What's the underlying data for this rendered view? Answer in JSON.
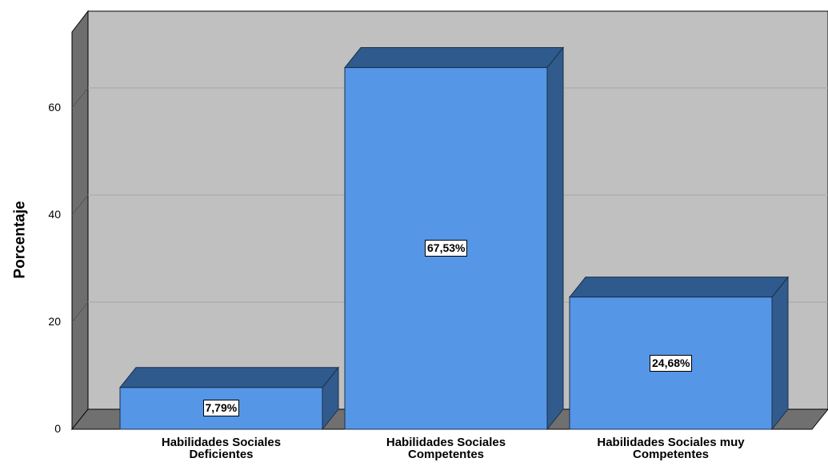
{
  "chart_data": {
    "type": "bar",
    "categories": [
      [
        "Habilidades Sociales",
        "Deficientes"
      ],
      [
        "Habilidades Sociales",
        "Competentes"
      ],
      [
        "Habilidades Sociales muy",
        "Competentes"
      ]
    ],
    "values": [
      7.79,
      67.53,
      24.68
    ],
    "data_labels": [
      "7,79%",
      "67,53%",
      "24,68%"
    ],
    "ylabel": "Porcentaje",
    "yticks": [
      0,
      20,
      40,
      60
    ],
    "ylim": [
      0,
      78
    ],
    "grid": true,
    "style": "3d",
    "colors": {
      "bar_front": "#5596e6",
      "bar_top": "#2f5a8d",
      "bar_side": "#315b8c",
      "wall": "#c0c0c0",
      "floor": "#707070",
      "gridline": "#a6a6a6"
    }
  }
}
